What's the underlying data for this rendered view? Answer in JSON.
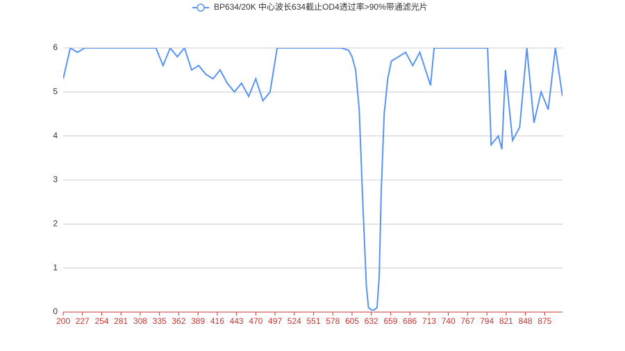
{
  "chart_data": {
    "type": "line",
    "series": [
      {
        "name": "BP634/20K 中心波长634截止OD4透过率>90%带通滤光片",
        "color": "#5793f3",
        "x": [
          200,
          210,
          220,
          230,
          240,
          250,
          260,
          270,
          280,
          290,
          300,
          310,
          320,
          330,
          340,
          350,
          360,
          370,
          380,
          390,
          400,
          410,
          420,
          430,
          440,
          450,
          460,
          470,
          480,
          490,
          500,
          510,
          520,
          530,
          540,
          550,
          560,
          570,
          580,
          590,
          600,
          605,
          610,
          615,
          620,
          625,
          628,
          632,
          636,
          640,
          643,
          646,
          650,
          655,
          660,
          670,
          680,
          690,
          700,
          710,
          715,
          720,
          730,
          740,
          750,
          760,
          770,
          780,
          790,
          795,
          800,
          810,
          815,
          820,
          830,
          840,
          850,
          860,
          870,
          880,
          890,
          900
        ],
        "values": [
          5.3,
          6,
          5.9,
          6,
          6,
          6,
          6,
          6,
          6,
          6,
          6,
          6,
          6,
          6,
          5.6,
          6,
          5.8,
          6,
          5.5,
          5.6,
          5.4,
          5.3,
          5.5,
          5.2,
          5.0,
          5.2,
          4.9,
          5.3,
          4.8,
          5.0,
          6,
          6,
          6,
          6,
          6,
          6,
          6,
          6,
          6,
          6,
          5.95,
          5.8,
          5.5,
          4.6,
          2.5,
          0.6,
          0.1,
          0.05,
          0.05,
          0.1,
          0.8,
          2.8,
          4.5,
          5.3,
          5.7,
          5.8,
          5.9,
          5.6,
          5.9,
          5.4,
          5.15,
          6,
          6,
          6,
          6,
          6,
          6,
          6,
          6,
          6,
          3.8,
          4.0,
          3.7,
          5.5,
          3.9,
          4.2,
          6,
          4.3,
          5.0,
          4.6,
          6,
          4.9
        ]
      }
    ],
    "xlim": [
      200,
      900
    ],
    "xticks": [
      200,
      227,
      254,
      281,
      308,
      335,
      362,
      389,
      416,
      443,
      470,
      497,
      524,
      551,
      578,
      605,
      632,
      659,
      686,
      713,
      740,
      767,
      794,
      821,
      848,
      875
    ],
    "ylim": [
      0,
      6
    ],
    "yticks": [
      0,
      1,
      2,
      3,
      4,
      5,
      6
    ],
    "grid": true
  }
}
